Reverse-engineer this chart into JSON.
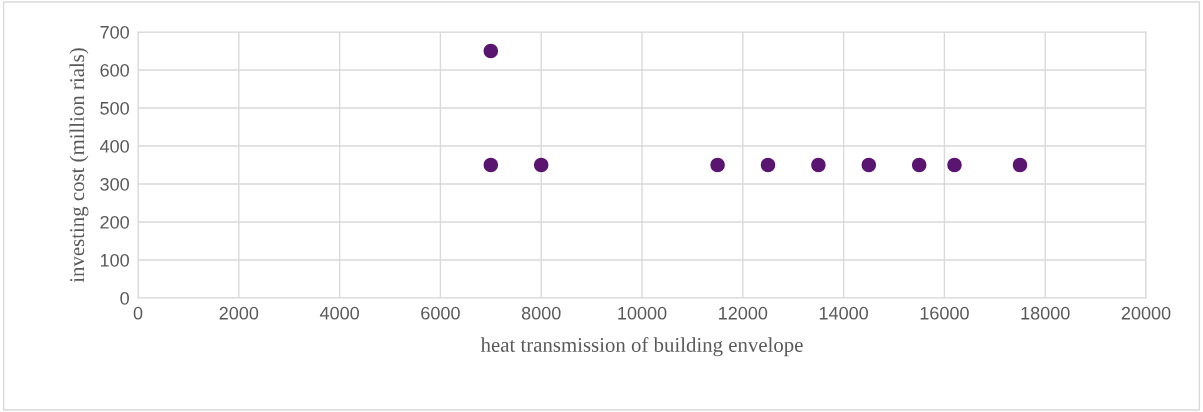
{
  "chart_data": {
    "type": "scatter",
    "xlabel": "heat transmission of building envelope",
    "ylabel": "investing cost (million rials)",
    "x": [
      7000,
      7000,
      8000,
      11500,
      12500,
      13500,
      14500,
      15500,
      16200,
      17500
    ],
    "series": [
      {
        "color": "#5a1570",
        "values": [
          650,
          350,
          350,
          350,
          350,
          350,
          350,
          350,
          350,
          350
        ]
      }
    ],
    "xlim": [
      0,
      20000
    ],
    "xticks": [
      0,
      2000,
      4000,
      6000,
      8000,
      10000,
      12000,
      14000,
      16000,
      18000,
      20000
    ],
    "ylim": [
      0,
      700
    ],
    "yticks": [
      0,
      100,
      200,
      300,
      400,
      500,
      600,
      700
    ],
    "grid": true,
    "marker": "circle"
  }
}
